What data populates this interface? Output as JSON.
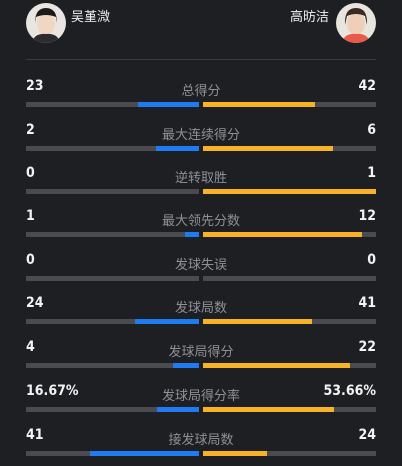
{
  "players": {
    "left": {
      "name": "吴堇溦"
    },
    "right": {
      "name": "高昉洁"
    }
  },
  "colors": {
    "left_bar": "#1e7bf2",
    "right_bar": "#f7b325",
    "track": "#4a4b50"
  },
  "stats": [
    {
      "label": "总得分",
      "left": "23",
      "right": "42",
      "left_share": 0.35,
      "right_share": 0.65
    },
    {
      "label": "最大连续得分",
      "left": "2",
      "right": "6",
      "left_share": 0.25,
      "right_share": 0.75
    },
    {
      "label": "逆转取胜",
      "left": "0",
      "right": "1",
      "left_share": 0.0,
      "right_share": 1.0
    },
    {
      "label": "最大领先分数",
      "left": "1",
      "right": "12",
      "left_share": 0.08,
      "right_share": 0.92
    },
    {
      "label": "发球失误",
      "left": "0",
      "right": "0",
      "left_share": 0.0,
      "right_share": 0.0
    },
    {
      "label": "发球局数",
      "left": "24",
      "right": "41",
      "left_share": 0.37,
      "right_share": 0.63
    },
    {
      "label": "发球局得分",
      "left": "4",
      "right": "22",
      "left_share": 0.15,
      "right_share": 0.85
    },
    {
      "label": "发球局得分率",
      "left": "16.67%",
      "right": "53.66%",
      "left_share": 0.24,
      "right_share": 0.76
    },
    {
      "label": "接发球局数",
      "left": "41",
      "right": "24",
      "left_share": 0.63,
      "right_share": 0.37
    }
  ]
}
